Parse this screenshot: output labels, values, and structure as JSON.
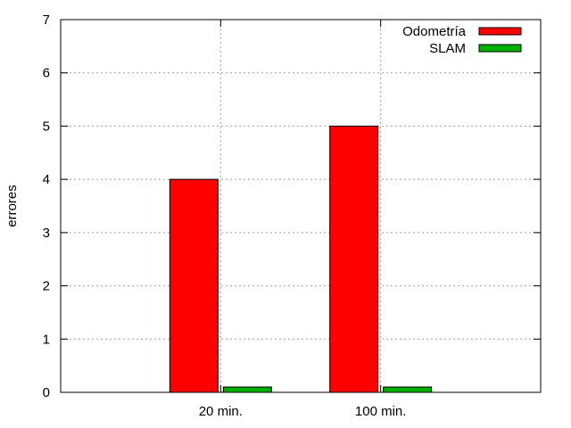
{
  "chart_data": {
    "type": "bar",
    "title": "",
    "xlabel": "",
    "ylabel": "errores",
    "categories": [
      "20 min.",
      "100 min."
    ],
    "series": [
      {
        "name": "Odometría",
        "color": "#ff0000",
        "values": [
          4,
          5
        ]
      },
      {
        "name": "SLAM",
        "color": "#00b000",
        "values": [
          0.1,
          0.1
        ]
      }
    ],
    "ylim": [
      0,
      7
    ],
    "yticks": [
      0,
      1,
      2,
      3,
      4,
      5,
      6,
      7
    ],
    "grid": true,
    "legend_position": "top-right"
  }
}
